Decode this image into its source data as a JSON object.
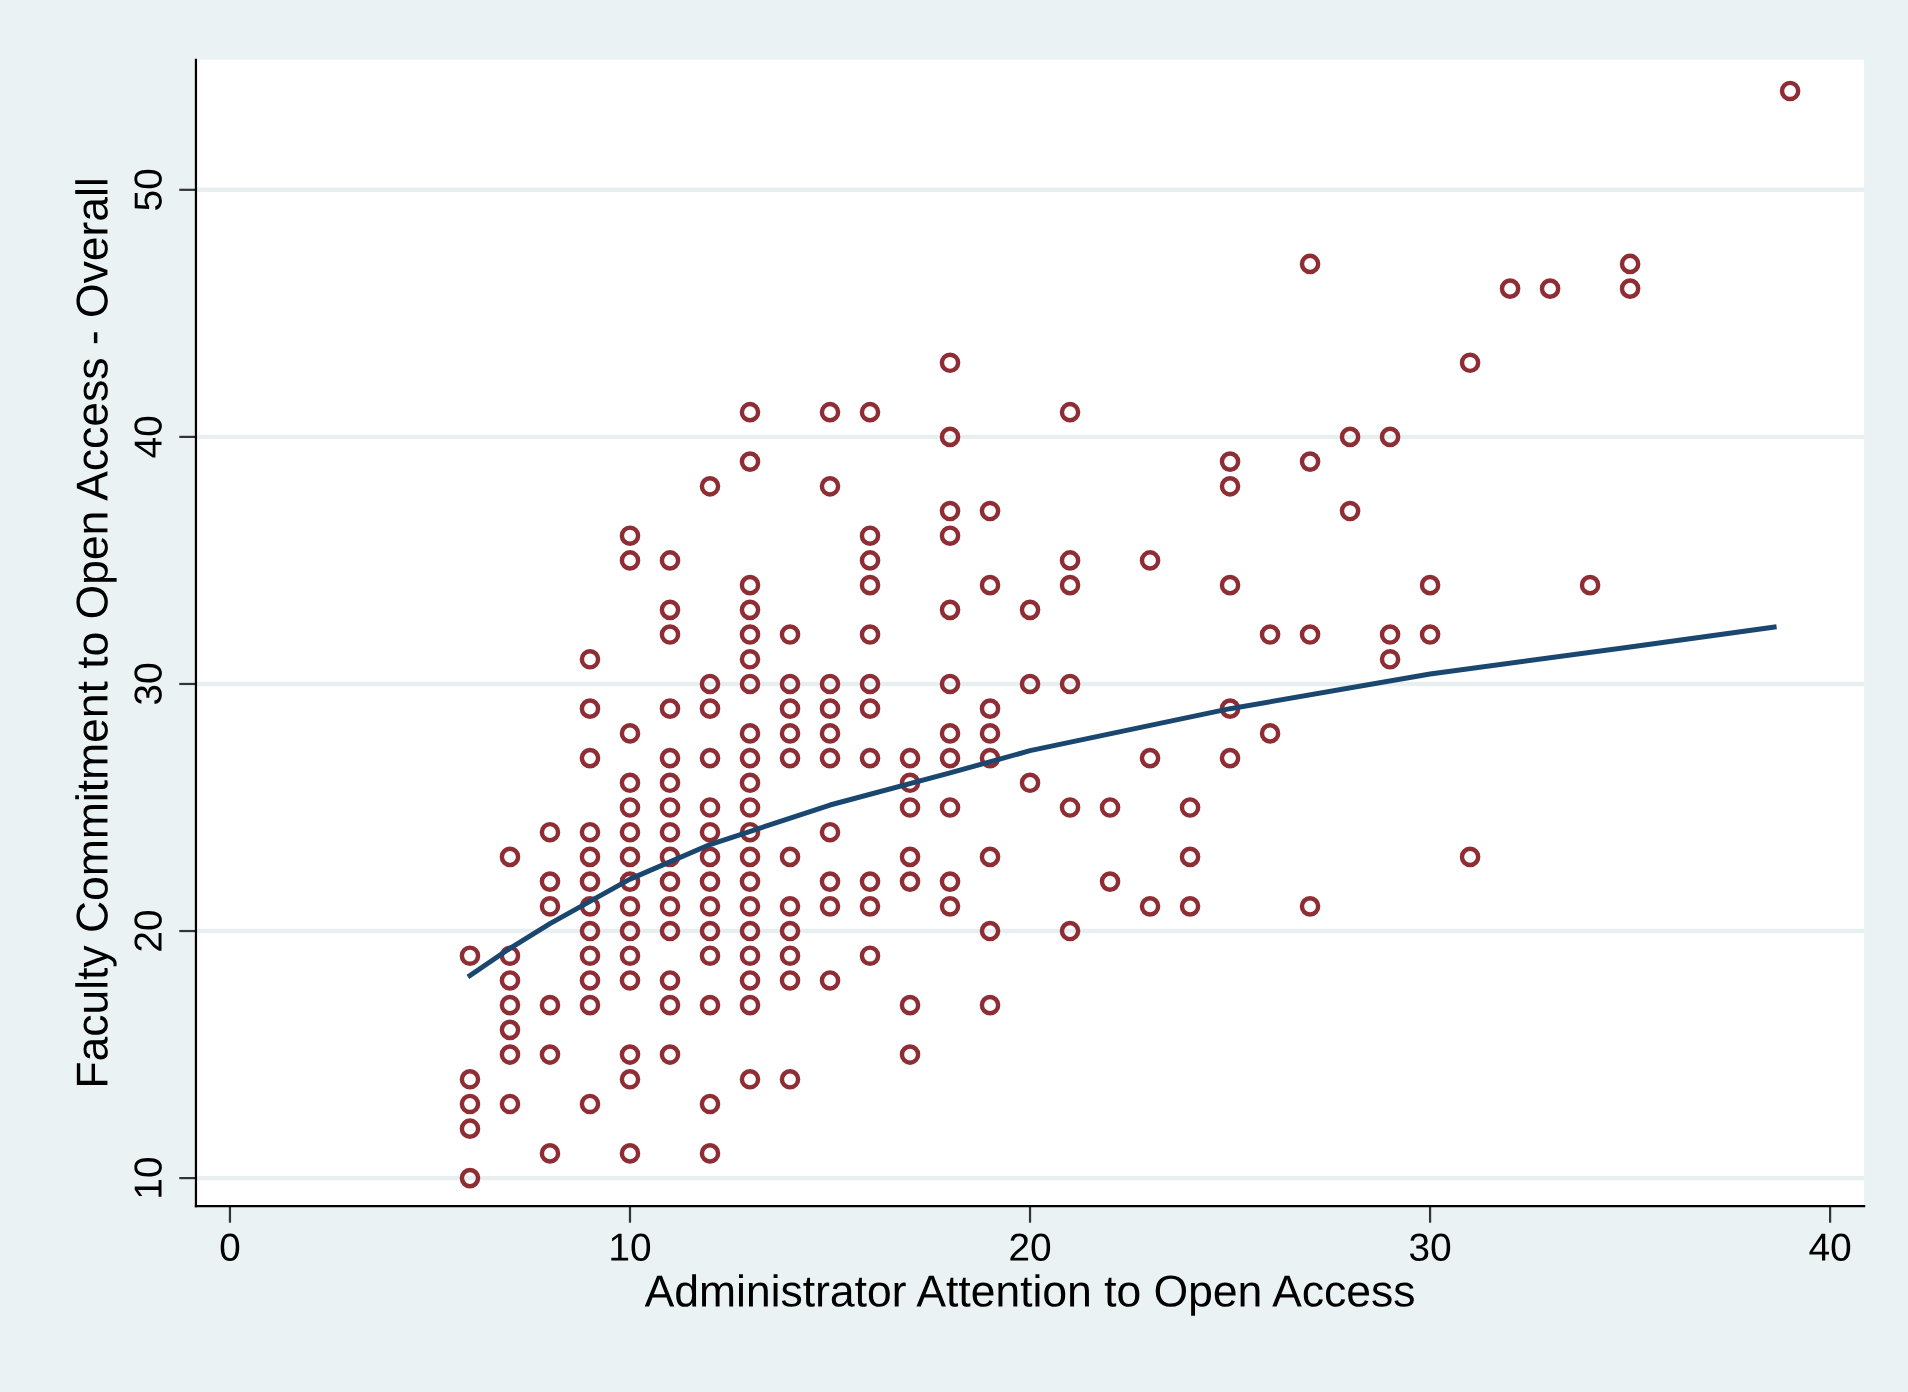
{
  "chart_data": {
    "type": "scatter",
    "xlabel": "Administrator Attention to Open Access",
    "ylabel": "Faculty Commitment to Open Access - Overall",
    "xlim": [
      -0.85,
      40.85
    ],
    "ylim": [
      8.87,
      55.26
    ],
    "xticks": [
      0,
      10,
      20,
      30,
      40
    ],
    "yticks": [
      10,
      20,
      30,
      40,
      50
    ],
    "grid": "y",
    "marker": "circle",
    "series": [
      {
        "color": "#8f2d35",
        "x": [
          6,
          6,
          6,
          6,
          6,
          7,
          7,
          7,
          7,
          7,
          7,
          7,
          8,
          8,
          8,
          8,
          8,
          8,
          9,
          9,
          9,
          9,
          9,
          9,
          9,
          9,
          9,
          9,
          9,
          9,
          10,
          10,
          10,
          10,
          10,
          10,
          10,
          10,
          10,
          10,
          10,
          10,
          10,
          10,
          10,
          11,
          11,
          11,
          11,
          11,
          11,
          11,
          11,
          11,
          11,
          11,
          11,
          11,
          11,
          11,
          12,
          12,
          12,
          12,
          12,
          12,
          12,
          12,
          12,
          12,
          12,
          12,
          12,
          12,
          13,
          13,
          13,
          13,
          13,
          13,
          13,
          13,
          13,
          13,
          13,
          13,
          13,
          13,
          13,
          13,
          13,
          13,
          13,
          13,
          14,
          14,
          14,
          14,
          14,
          14,
          14,
          14,
          14,
          14,
          14,
          15,
          15,
          15,
          15,
          15,
          15,
          15,
          15,
          15,
          15,
          16,
          16,
          16,
          16,
          16,
          16,
          16,
          16,
          16,
          16,
          16,
          17,
          17,
          17,
          17,
          17,
          17,
          17,
          18,
          18,
          18,
          18,
          18,
          18,
          18,
          18,
          18,
          18,
          18,
          19,
          19,
          19,
          19,
          19,
          19,
          19,
          19,
          20,
          20,
          20,
          21,
          21,
          21,
          21,
          21,
          21,
          22,
          22,
          23,
          23,
          23,
          24,
          24,
          24,
          25,
          25,
          25,
          25,
          25,
          26,
          26,
          27,
          27,
          27,
          27,
          28,
          28,
          29,
          29,
          29,
          30,
          30,
          31,
          31,
          32,
          33,
          34,
          35,
          35,
          39
        ],
        "values": [
          19,
          14,
          13,
          12,
          10,
          23,
          19,
          18,
          17,
          16,
          15,
          13,
          24,
          22,
          21,
          17,
          15,
          11,
          31,
          29,
          27,
          24,
          23,
          22,
          21,
          20,
          19,
          18,
          17,
          13,
          36,
          35,
          28,
          26,
          25,
          24,
          23,
          22,
          21,
          20,
          19,
          18,
          15,
          14,
          11,
          35,
          33,
          32,
          29,
          27,
          26,
          25,
          24,
          23,
          22,
          21,
          20,
          18,
          17,
          15,
          38,
          30,
          29,
          27,
          25,
          24,
          23,
          22,
          21,
          20,
          19,
          17,
          13,
          11,
          41,
          39,
          34,
          33,
          32,
          31,
          30,
          28,
          27,
          26,
          25,
          24,
          23,
          22,
          21,
          20,
          19,
          18,
          17,
          14,
          32,
          30,
          29,
          28,
          27,
          23,
          21,
          20,
          19,
          18,
          14,
          41,
          38,
          30,
          29,
          28,
          27,
          24,
          22,
          21,
          18,
          41,
          36,
          35,
          34,
          32,
          30,
          29,
          27,
          22,
          21,
          19,
          27,
          26,
          25,
          23,
          22,
          17,
          15,
          43,
          40,
          37,
          36,
          33,
          30,
          28,
          27,
          25,
          22,
          21,
          37,
          34,
          29,
          28,
          27,
          23,
          20,
          17,
          33,
          30,
          26,
          41,
          35,
          34,
          30,
          25,
          20,
          25,
          22,
          35,
          27,
          21,
          25,
          23,
          21,
          39,
          38,
          34,
          29,
          27,
          32,
          28,
          47,
          39,
          32,
          21,
          40,
          37,
          40,
          32,
          31,
          34,
          32,
          43,
          23,
          46,
          46,
          34,
          47,
          46,
          54
        ]
      },
      {
        "type": "line",
        "color": "#1a476f",
        "marker": "none",
        "x": [
          6,
          7,
          8,
          9,
          10,
          12,
          15,
          18,
          20,
          25,
          30,
          35,
          38.6
        ],
        "values": [
          18.2,
          19.3,
          20.3,
          21.2,
          22.1,
          23.5,
          25.1,
          26.4,
          27.3,
          29.0,
          30.4,
          31.5,
          32.3
        ]
      }
    ]
  }
}
